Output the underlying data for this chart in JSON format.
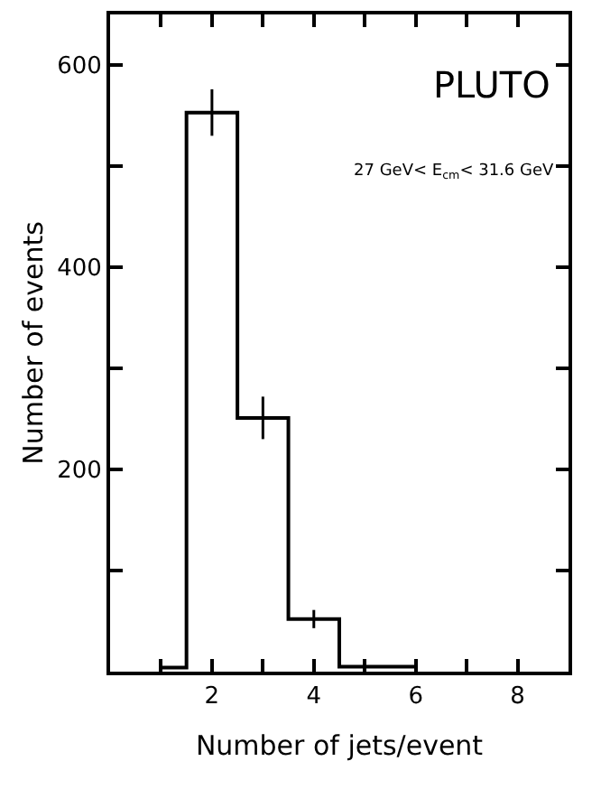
{
  "chart_data": {
    "type": "step",
    "xlabel": "Number of jets/event",
    "ylabel": "Number of events",
    "annotations": [
      "PLUTO",
      "27 GeV< E$_{cm}$< 31.6 GeV"
    ],
    "x": [
      1,
      2,
      3,
      4,
      5,
      6
    ],
    "values": [
      4,
      553,
      251,
      52,
      5,
      5
    ],
    "errors": [
      null,
      23,
      21,
      9,
      null,
      null
    ],
    "color": "#000000",
    "xlim": [
      0,
      9
    ],
    "ylim": [
      0,
      650
    ],
    "xticks": [
      {
        "value": 1,
        "label": null
      },
      2,
      {
        "value": 3,
        "label": null
      },
      4,
      {
        "value": 5,
        "label": null
      },
      6,
      {
        "value": 7,
        "label": null
      },
      8
    ],
    "yticks": [
      {
        "value": 100,
        "label": null
      },
      200,
      {
        "value": 300,
        "label": null
      },
      400,
      {
        "value": 500,
        "label": null
      },
      600
    ]
  }
}
